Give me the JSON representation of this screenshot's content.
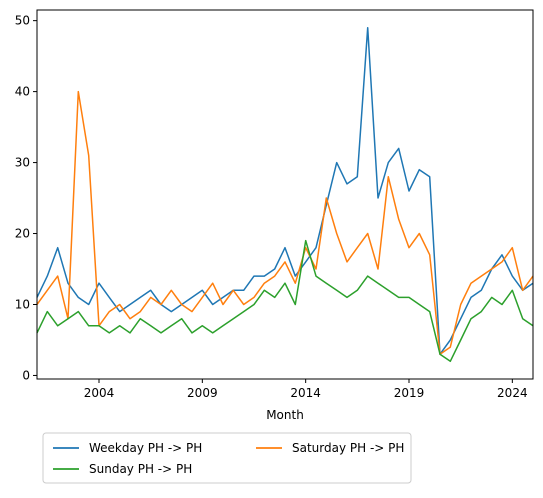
{
  "chart_data": {
    "type": "line",
    "title": "",
    "xlabel": "Month",
    "ylabel": "",
    "xlim": [
      2001.0,
      2025.0
    ],
    "ylim": [
      -0.5,
      51.5
    ],
    "grid": false,
    "legend_position": "lower-left, below the axes",
    "legend_columns": 2,
    "x_tick_values": [
      2004,
      2009,
      2014,
      2019,
      2024
    ],
    "x_tick_labels": [
      "2004",
      "2009",
      "2014",
      "2019",
      "2024"
    ],
    "y_tick_values": [
      0,
      10,
      20,
      30,
      40,
      50
    ],
    "y_tick_labels": [
      "0",
      "10",
      "20",
      "30",
      "40",
      "50"
    ],
    "x": [
      2001.0,
      2001.5,
      2002.0,
      2002.5,
      2003.0,
      2003.5,
      2004.0,
      2004.5,
      2005.0,
      2005.5,
      2006.0,
      2006.5,
      2007.0,
      2007.5,
      2008.0,
      2008.5,
      2009.0,
      2009.5,
      2010.0,
      2010.5,
      2011.0,
      2011.5,
      2012.0,
      2012.5,
      2013.0,
      2013.5,
      2014.0,
      2014.5,
      2015.0,
      2015.5,
      2016.0,
      2016.5,
      2017.0,
      2017.5,
      2018.0,
      2018.5,
      2019.0,
      2019.5,
      2020.0,
      2020.5,
      2021.0,
      2021.5,
      2022.0,
      2022.5,
      2023.0,
      2023.5,
      2024.0,
      2024.5,
      2025.0
    ],
    "series": [
      {
        "name": "Weekday PH -> PH",
        "color": "#1f77b4",
        "values": [
          11,
          14,
          18,
          13,
          11,
          10,
          13,
          11,
          9,
          10,
          11,
          12,
          10,
          9,
          10,
          11,
          12,
          10,
          11,
          12,
          12,
          14,
          14,
          15,
          18,
          14,
          16,
          18,
          24,
          30,
          27,
          28,
          49,
          25,
          30,
          32,
          26,
          29,
          28,
          3,
          5,
          8,
          11,
          12,
          15,
          17,
          14,
          12,
          13
        ]
      },
      {
        "name": "Saturday PH -> PH",
        "color": "#ff7f0e",
        "values": [
          10,
          12,
          14,
          8,
          40,
          31,
          7,
          9,
          10,
          8,
          9,
          11,
          10,
          12,
          10,
          9,
          11,
          13,
          10,
          12,
          10,
          11,
          13,
          14,
          16,
          13,
          18,
          15,
          25,
          20,
          16,
          18,
          20,
          15,
          28,
          22,
          18,
          20,
          17,
          3,
          4,
          10,
          13,
          14,
          15,
          16,
          18,
          12,
          14
        ]
      },
      {
        "name": "Sunday PH -> PH",
        "color": "#2ca02c",
        "values": [
          6,
          9,
          7,
          8,
          9,
          7,
          7,
          6,
          7,
          6,
          8,
          7,
          6,
          7,
          8,
          6,
          7,
          6,
          7,
          8,
          9,
          10,
          12,
          11,
          13,
          10,
          19,
          14,
          13,
          12,
          11,
          12,
          14,
          13,
          12,
          11,
          11,
          10,
          9,
          3,
          2,
          5,
          8,
          9,
          11,
          10,
          12,
          8,
          7
        ]
      }
    ]
  }
}
